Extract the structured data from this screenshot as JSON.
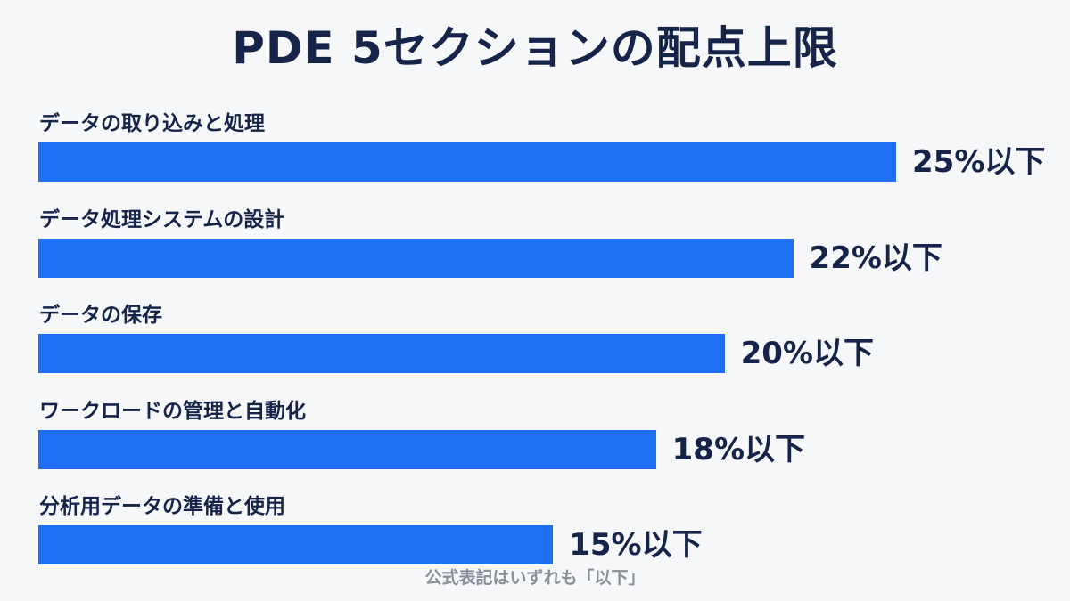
{
  "title": "PDE 5セクションの配点上限",
  "footnote": "公式表記はいずれも「以下」",
  "colors": {
    "background": "#f6f7f9",
    "bar": "#1f6ff2",
    "text": "#17244a",
    "footnote": "#8a8f99"
  },
  "chart_data": {
    "type": "bar",
    "orientation": "horizontal",
    "title": "PDE 5セクションの配点上限",
    "categories": [
      "データの取り込みと処理",
      "データ処理システムの設計",
      "データの保存",
      "ワークロードの管理と自動化",
      "分析用データの準備と使用"
    ],
    "values": [
      25,
      22,
      20,
      18,
      15
    ],
    "value_labels": [
      "25%以下",
      "22%以下",
      "20%以下",
      "18%以下",
      "15%以下"
    ],
    "unit": "%",
    "xlim": [
      0,
      25
    ],
    "grid": false,
    "legend": "none"
  }
}
